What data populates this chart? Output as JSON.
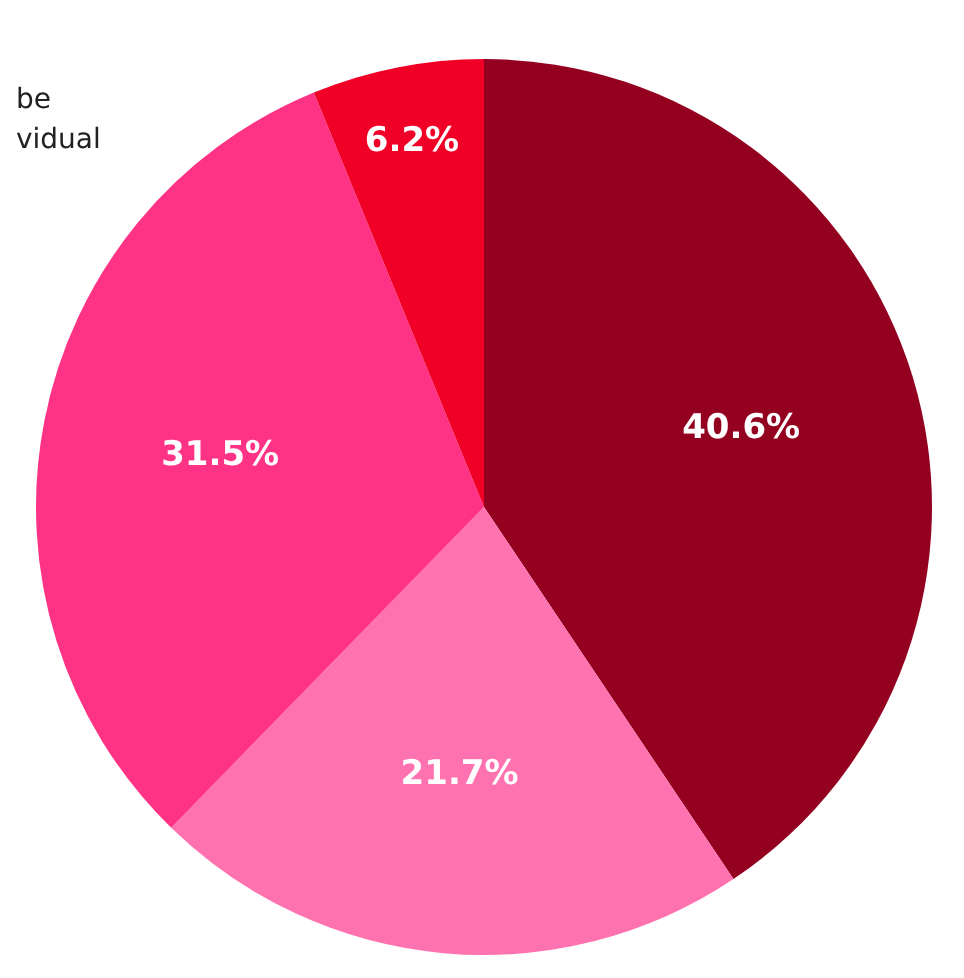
{
  "chart_data": {
    "type": "pie",
    "categories": [
      null,
      null,
      null,
      null
    ],
    "values": [
      40.6,
      21.7,
      31.5,
      6.2
    ],
    "colors": [
      "#930020",
      "#ff72b0",
      "#ff3385",
      "#f00026"
    ],
    "value_labels": [
      "40.6%",
      "21.7%",
      "31.5%",
      "6.2%"
    ],
    "annotations": [
      "be",
      "vidual"
    ]
  }
}
